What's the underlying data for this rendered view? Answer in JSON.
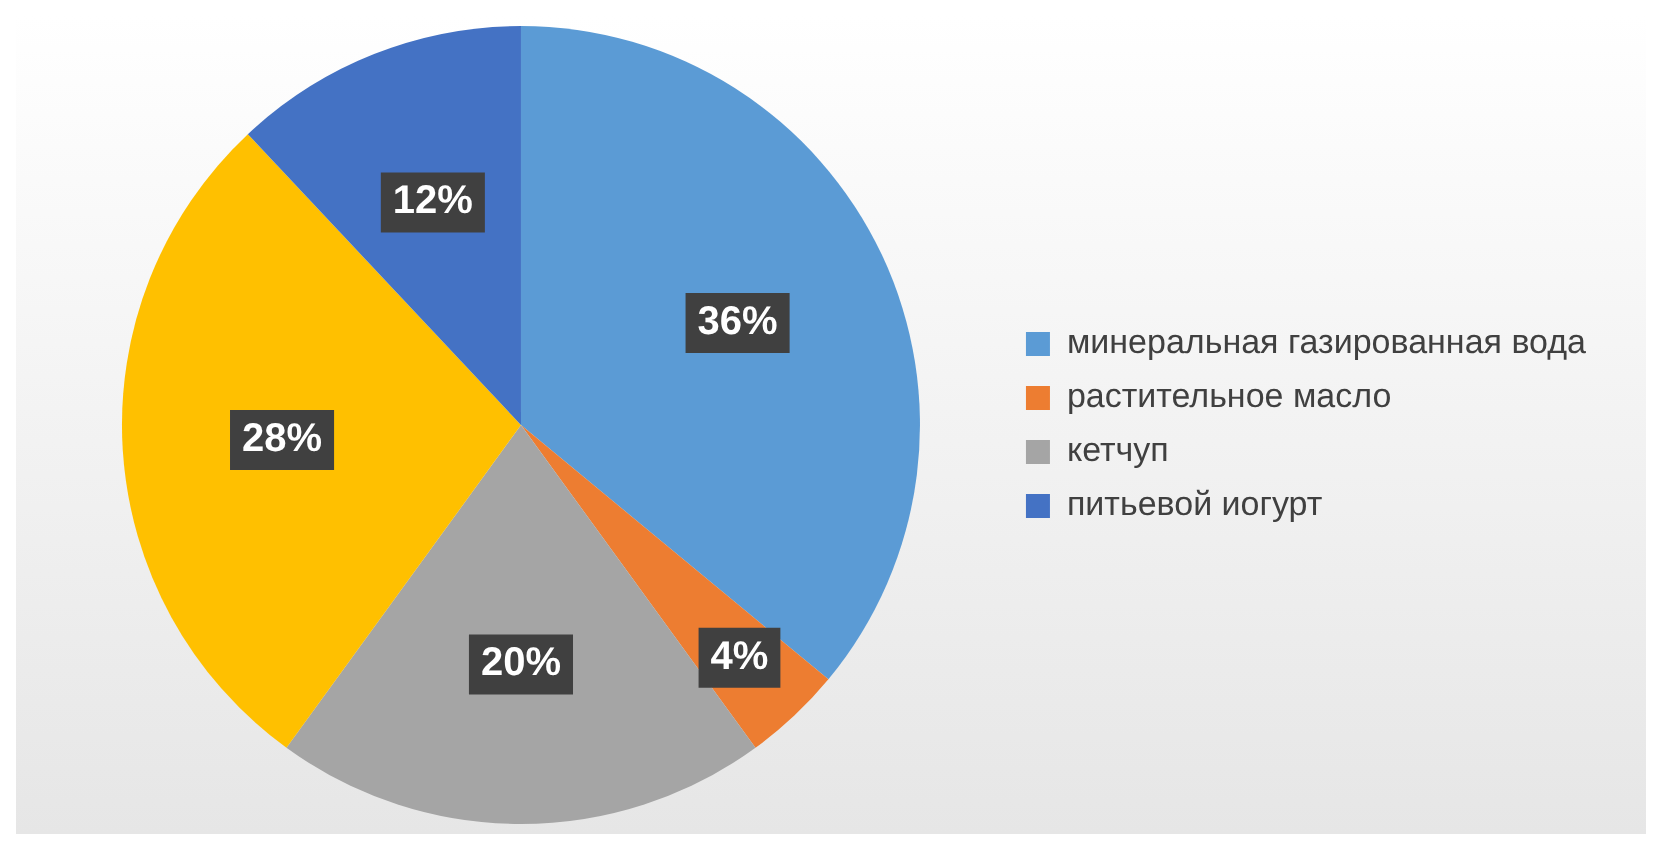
{
  "chart_data": {
    "type": "pie",
    "categories": [
      "минеральная газированная вода",
      "растительное масло",
      "кетчуп",
      null,
      "питьевой иогурт"
    ],
    "values": [
      36,
      4,
      20,
      28,
      12
    ],
    "value_labels": [
      "36%",
      "4%",
      "20%",
      "28%",
      "12%"
    ],
    "colors": [
      "#5b9bd5",
      "#ed7d31",
      "#a5a5a5",
      "#ffc000",
      "#4472c4"
    ],
    "legend": "right"
  }
}
